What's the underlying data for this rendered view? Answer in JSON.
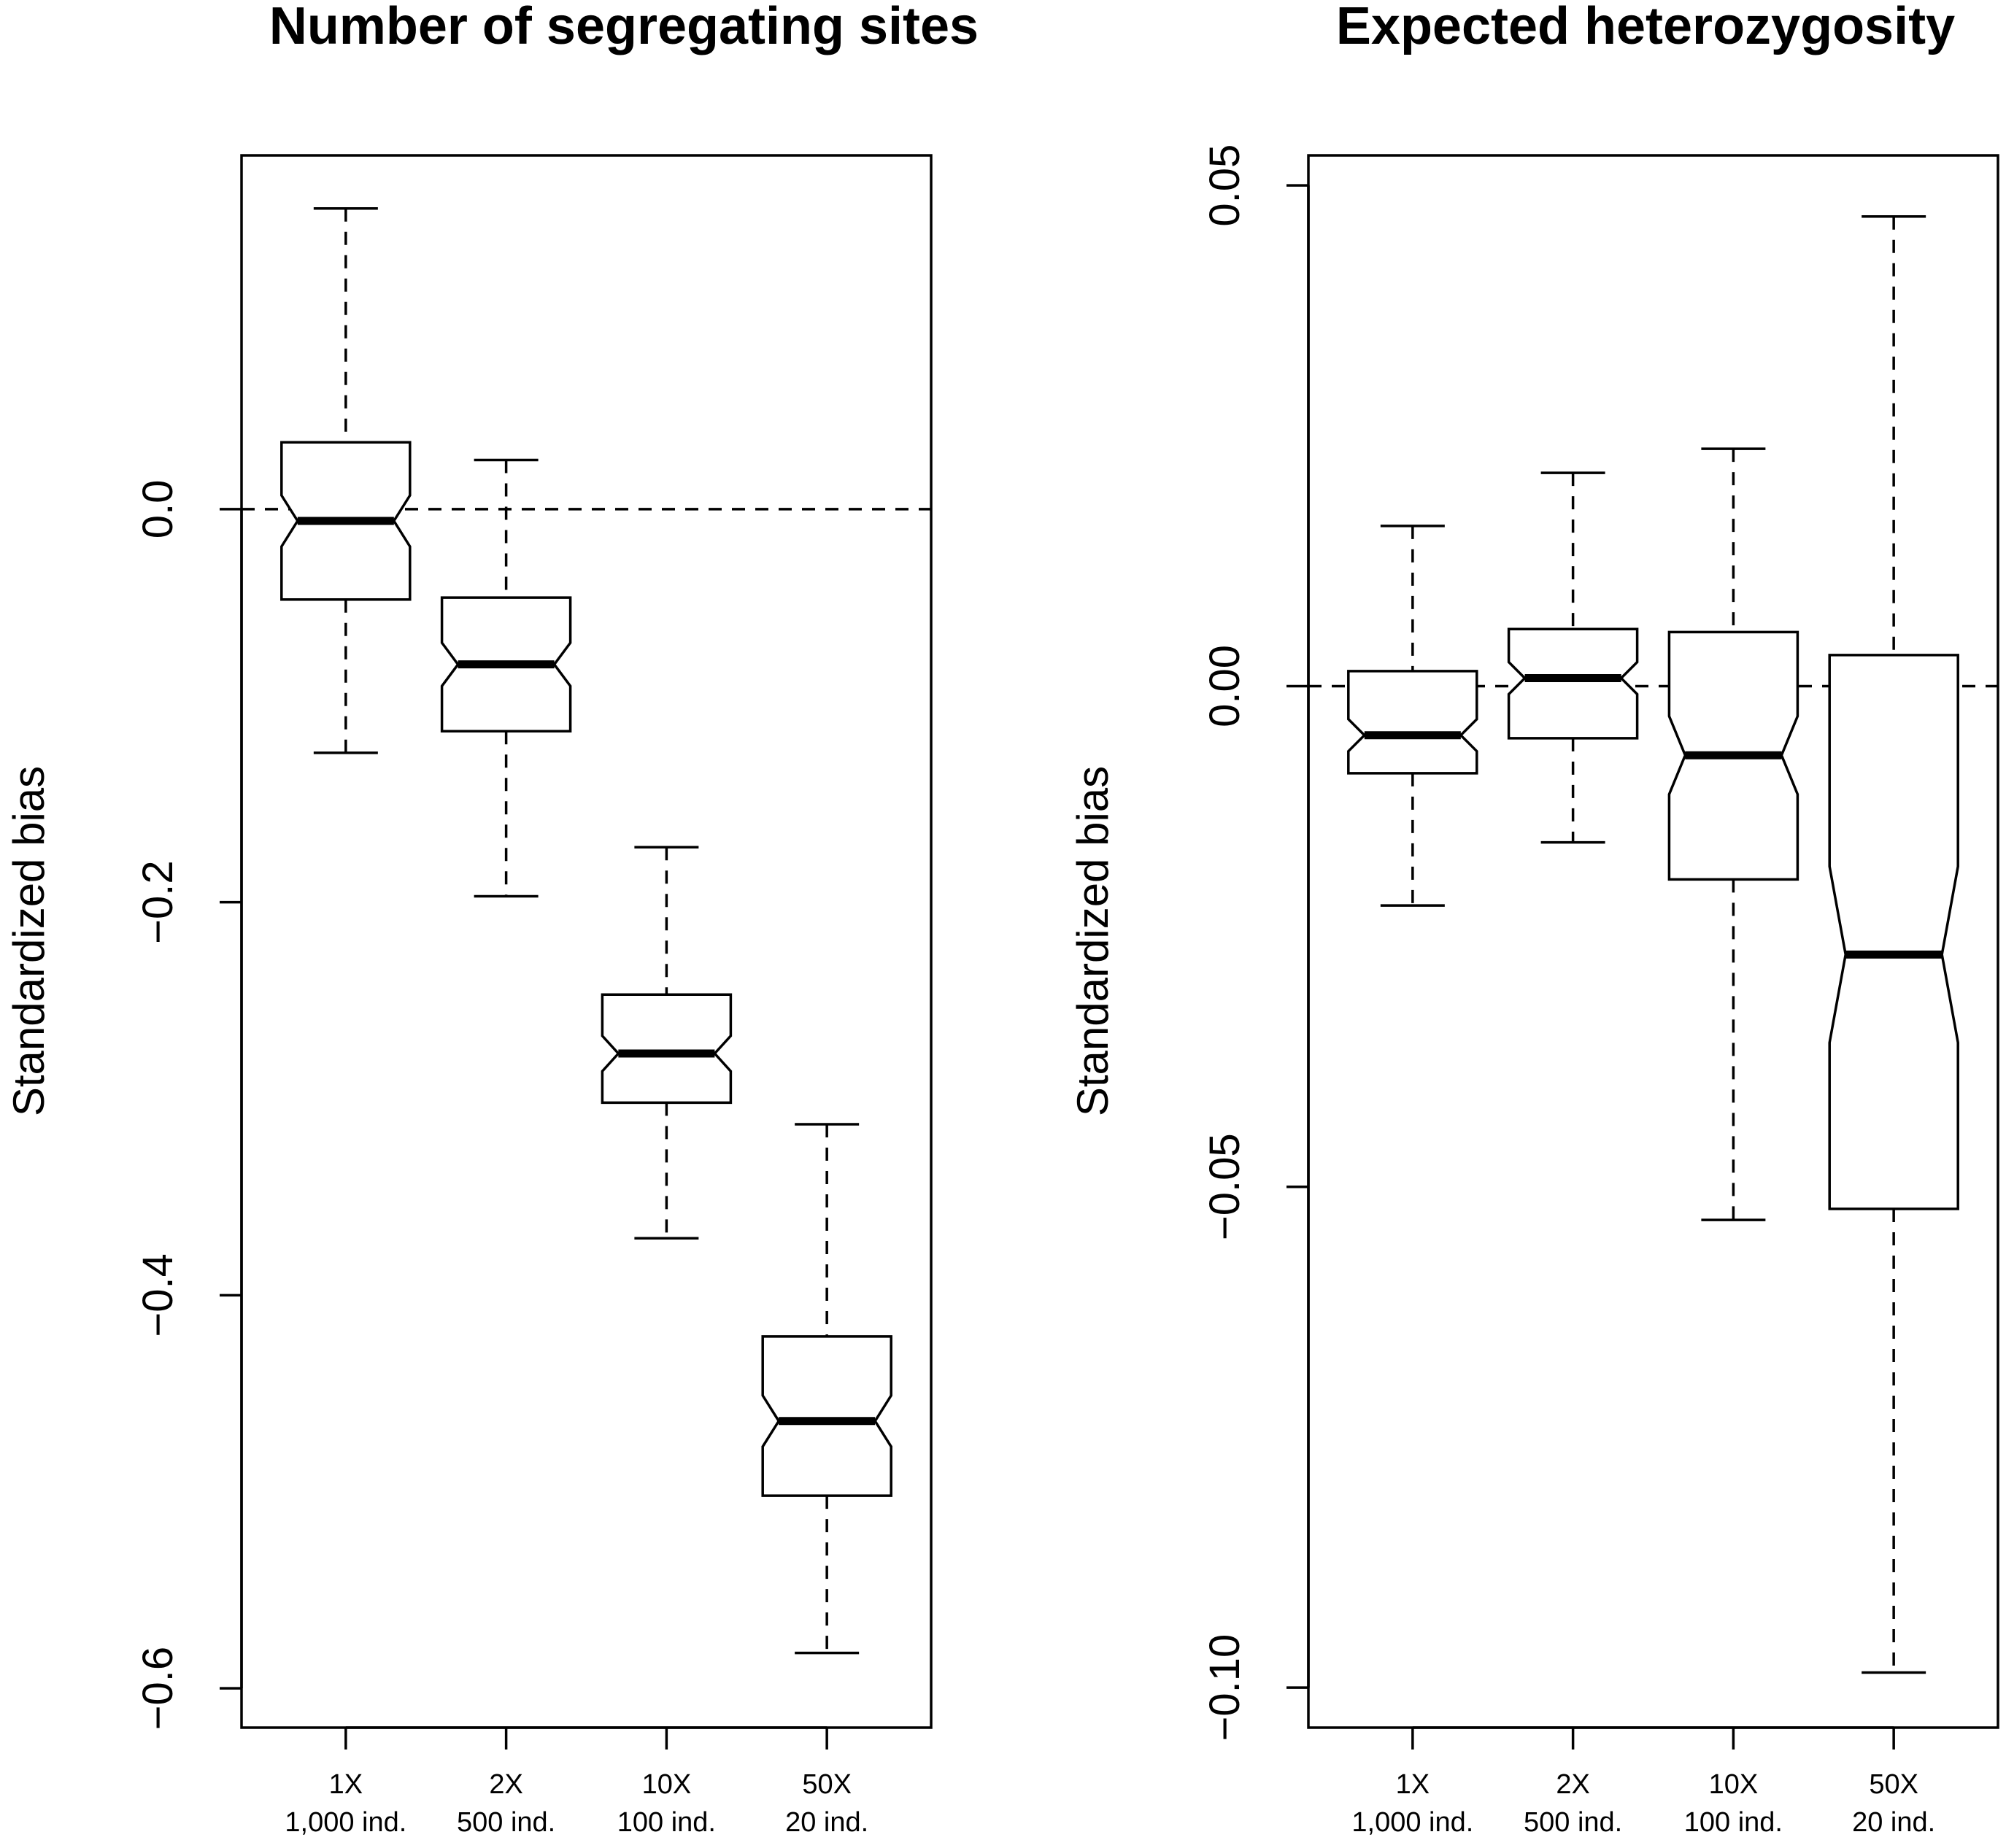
{
  "chart_data": [
    {
      "type": "boxplot",
      "title": "Number of segregating sites",
      "ylabel": "Standardized bias",
      "xlabel": "",
      "ylim": [
        -0.62,
        0.18
      ],
      "yticks": [
        0.0,
        -0.2,
        -0.4,
        -0.6
      ],
      "ytick_labels": [
        "0.0",
        "−0.2",
        "−0.4",
        "−0.6"
      ],
      "reference_line": 0.0,
      "notched": true,
      "categories": [
        {
          "line1": "1X",
          "line2": "1,000 ind."
        },
        {
          "line1": "2X",
          "line2": "500 ind."
        },
        {
          "line1": "10X",
          "line2": "100 ind."
        },
        {
          "line1": "50X",
          "line2": "20 ind."
        }
      ],
      "boxes": [
        {
          "whisker_low": -0.124,
          "q1": -0.046,
          "median": -0.006,
          "q3": 0.034,
          "whisker_high": 0.153,
          "notch_low": -0.019,
          "notch_high": 0.007
        },
        {
          "whisker_low": -0.197,
          "q1": -0.113,
          "median": -0.079,
          "q3": -0.045,
          "whisker_high": 0.025,
          "notch_low": -0.09,
          "notch_high": -0.068
        },
        {
          "whisker_low": -0.371,
          "q1": -0.302,
          "median": -0.277,
          "q3": -0.247,
          "whisker_high": -0.172,
          "notch_low": -0.286,
          "notch_high": -0.268
        },
        {
          "whisker_low": -0.582,
          "q1": -0.502,
          "median": -0.464,
          "q3": -0.421,
          "whisker_high": -0.313,
          "notch_low": -0.477,
          "notch_high": -0.451
        }
      ]
    },
    {
      "type": "boxplot",
      "title": "Expected heterozygosity",
      "ylabel": "Standardized bias",
      "xlabel": "",
      "ylim": [
        -0.104,
        0.053
      ],
      "yticks": [
        0.05,
        0.0,
        -0.05,
        -0.1
      ],
      "ytick_labels": [
        "0.05",
        "0.00",
        "−0.05",
        "−0.10"
      ],
      "reference_line": 0.0,
      "notched": true,
      "categories": [
        {
          "line1": "1X",
          "line2": "1,000 ind."
        },
        {
          "line1": "2X",
          "line2": "500 ind."
        },
        {
          "line1": "10X",
          "line2": "100 ind."
        },
        {
          "line1": "50X",
          "line2": "20 ind."
        }
      ],
      "boxes": [
        {
          "whisker_low": -0.0219,
          "q1": -0.0087,
          "median": -0.0049,
          "q3": 0.0015,
          "whisker_high": 0.016,
          "notch_low": -0.0065,
          "notch_high": -0.0033
        },
        {
          "whisker_low": -0.0156,
          "q1": -0.0052,
          "median": 0.0008,
          "q3": 0.0057,
          "whisker_high": 0.0213,
          "notch_low": -0.0008,
          "notch_high": 0.0024
        },
        {
          "whisker_low": -0.0533,
          "q1": -0.0193,
          "median": -0.0069,
          "q3": 0.0054,
          "whisker_high": 0.0237,
          "notch_low": -0.0108,
          "notch_high": -0.003
        },
        {
          "whisker_low": -0.0985,
          "q1": -0.0522,
          "median": -0.0268,
          "q3": 0.0031,
          "whisker_high": 0.0469,
          "notch_low": -0.0356,
          "notch_high": -0.018
        }
      ]
    }
  ]
}
